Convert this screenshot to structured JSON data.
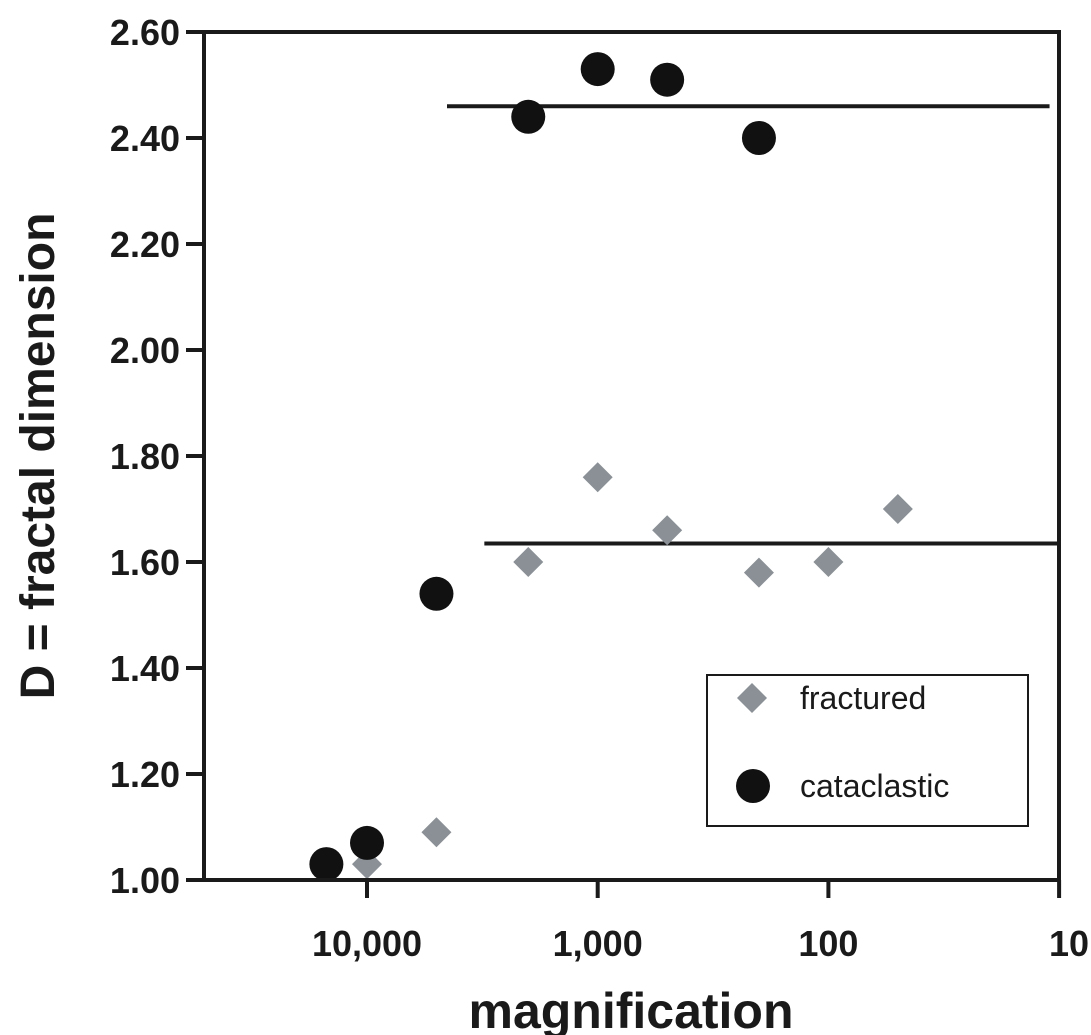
{
  "chart_data": {
    "type": "scatter",
    "xlabel": "magnification",
    "ylabel": "D = fractal dimension",
    "x_scale": "log",
    "x_reversed": true,
    "xlim": [
      20000,
      10
    ],
    "ylim": [
      1.0,
      2.6
    ],
    "x_ticks": [
      10000,
      1000,
      100,
      10
    ],
    "x_tick_labels": [
      "10,000",
      "1,000",
      "100",
      "10"
    ],
    "y_ticks": [
      1.0,
      1.2,
      1.4,
      1.6,
      1.8,
      2.0,
      2.2,
      2.4,
      2.6
    ],
    "y_tick_labels": [
      "1.00",
      "1.20",
      "1.40",
      "1.60",
      "1.80",
      "2.00",
      "2.20",
      "2.40",
      "2.60"
    ],
    "grid": false,
    "legend_position": "bottom-right",
    "series": [
      {
        "name": "fractured",
        "marker": "diamond",
        "color": "#8a9096",
        "points": [
          {
            "x": 10000,
            "y": 1.03
          },
          {
            "x": 5000,
            "y": 1.09
          },
          {
            "x": 2000,
            "y": 1.6
          },
          {
            "x": 1000,
            "y": 1.76
          },
          {
            "x": 500,
            "y": 1.66
          },
          {
            "x": 200,
            "y": 1.58
          },
          {
            "x": 100,
            "y": 1.6
          },
          {
            "x": 50,
            "y": 1.7
          }
        ]
      },
      {
        "name": "cataclastic",
        "marker": "circle",
        "color": "#111111",
        "points": [
          {
            "x": 15000,
            "y": 1.03
          },
          {
            "x": 10000,
            "y": 1.07
          },
          {
            "x": 5000,
            "y": 1.54
          },
          {
            "x": 2000,
            "y": 2.44
          },
          {
            "x": 1000,
            "y": 2.53
          },
          {
            "x": 500,
            "y": 2.51
          },
          {
            "x": 200,
            "y": 2.4
          }
        ]
      }
    ],
    "reference_lines": [
      {
        "series": "cataclastic",
        "y": 2.46,
        "x_from": 4500,
        "x_to": 11
      },
      {
        "series": "fractured",
        "y": 1.635,
        "x_from": 3100,
        "x_to": 10
      }
    ]
  }
}
